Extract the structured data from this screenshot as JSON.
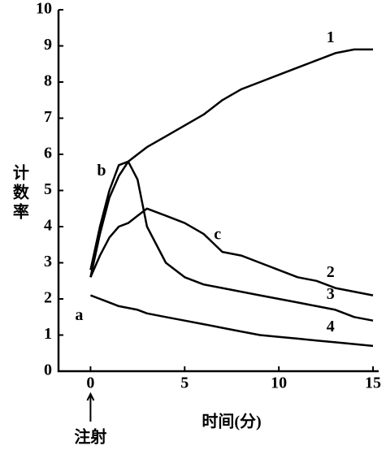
{
  "chart_data": {
    "type": "line",
    "xlabel": "时间(分)",
    "ylabel": "计数率",
    "x": [
      0,
      0.5,
      1,
      1.5,
      2,
      2.5,
      3,
      4,
      5,
      6,
      7,
      8,
      9,
      10,
      11,
      12,
      13,
      14,
      15
    ],
    "series": [
      {
        "name": "1",
        "color": "#000000",
        "values": [
          2.6,
          3.8,
          4.8,
          5.4,
          5.8,
          6.0,
          6.2,
          6.5,
          6.8,
          7.1,
          7.5,
          7.8,
          8.0,
          8.2,
          8.4,
          8.6,
          8.8,
          8.9,
          8.9
        ]
      },
      {
        "name": "2",
        "color": "#000000",
        "values": [
          2.6,
          3.2,
          3.7,
          4.0,
          4.1,
          4.3,
          4.5,
          4.3,
          4.1,
          3.8,
          3.3,
          3.2,
          3.0,
          2.8,
          2.6,
          2.5,
          2.3,
          2.2,
          2.1
        ]
      },
      {
        "name": "3",
        "color": "#000000",
        "values": [
          2.8,
          4.0,
          5.0,
          5.7,
          5.8,
          5.3,
          4.0,
          3.0,
          2.6,
          2.4,
          2.3,
          2.2,
          2.1,
          2.0,
          1.9,
          1.8,
          1.7,
          1.5,
          1.4
        ]
      },
      {
        "name": "4",
        "color": "#000000",
        "values": [
          2.1,
          2.0,
          1.9,
          1.8,
          1.75,
          1.7,
          1.6,
          1.5,
          1.4,
          1.3,
          1.2,
          1.1,
          1.0,
          0.95,
          0.9,
          0.85,
          0.8,
          0.75,
          0.7
        ]
      }
    ],
    "annotations": [
      "a",
      "b",
      "c",
      "注射"
    ],
    "xlim": [
      -1.7,
      15.3
    ],
    "ylim": [
      0,
      10
    ],
    "xticks": [
      0,
      5,
      10,
      15
    ],
    "yticks": [
      0,
      1,
      2,
      3,
      4,
      5,
      6,
      7,
      8,
      9,
      10
    ]
  }
}
